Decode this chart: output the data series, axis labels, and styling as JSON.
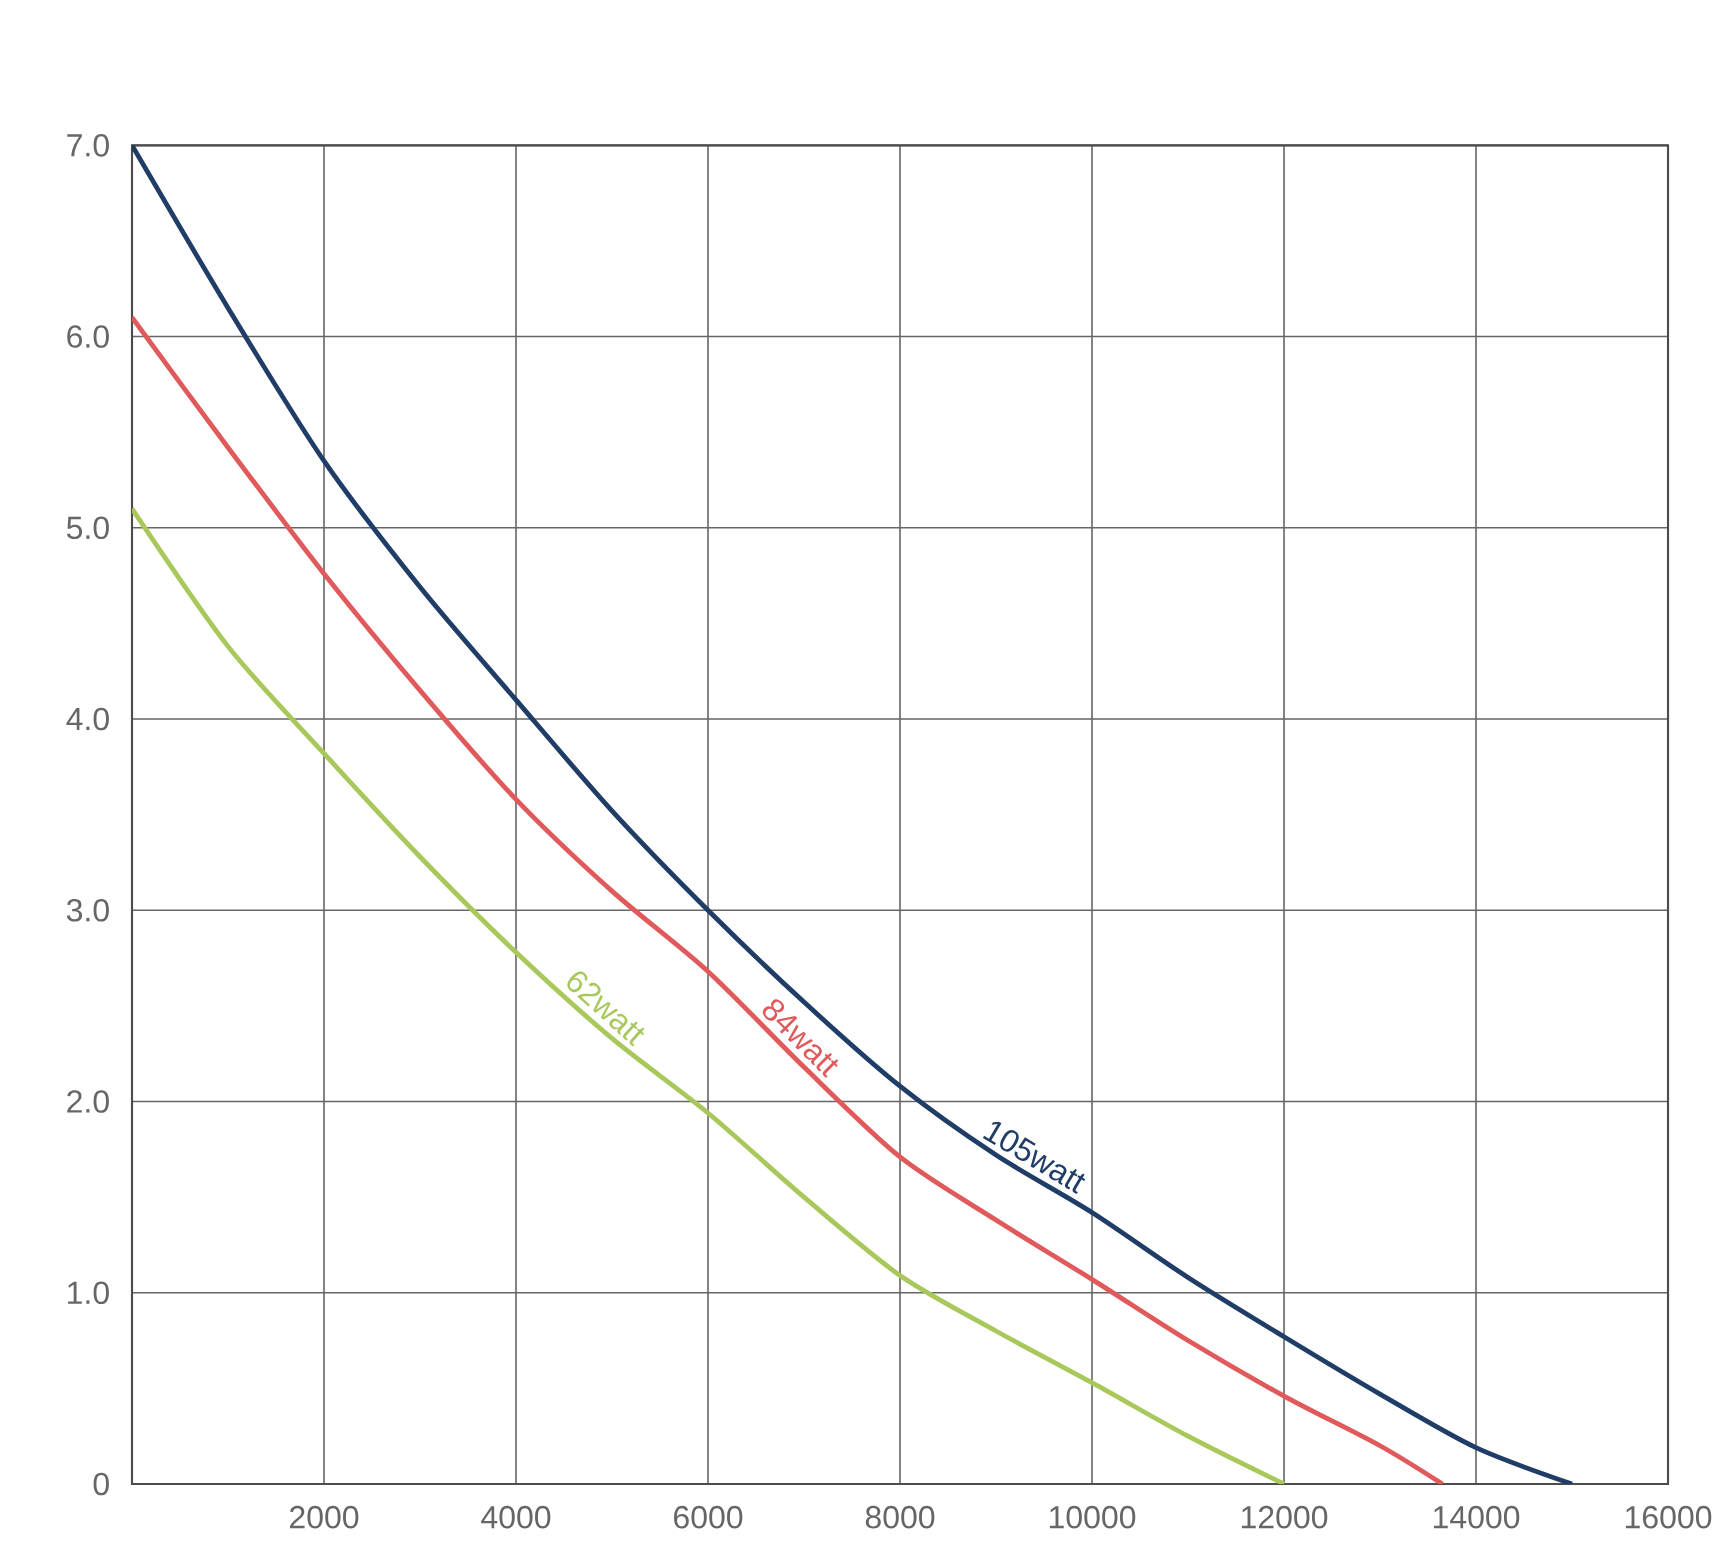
{
  "chart_data": {
    "type": "line",
    "x": [
      0,
      1000,
      2000,
      3000,
      4000,
      5000,
      6000,
      7000,
      8000,
      9000,
      10000,
      11000,
      12000,
      13000,
      14000,
      15000
    ],
    "series": [
      {
        "name": "105watt",
        "color": "#1f3d66",
        "values": [
          7.0,
          6.15,
          5.35,
          4.69,
          4.1,
          3.52,
          3.0,
          2.52,
          2.08,
          1.72,
          1.42,
          1.08,
          0.77,
          0.47,
          0.19,
          0.0
        ]
      },
      {
        "name": "84watt",
        "color": "#e05a5c",
        "x": [
          0,
          1000,
          2000,
          3000,
          4000,
          5000,
          6000,
          7000,
          8000,
          9000,
          10000,
          11000,
          12000,
          13000,
          13650
        ],
        "values": [
          6.1,
          5.42,
          4.76,
          4.15,
          3.58,
          3.1,
          2.68,
          2.18,
          1.71,
          1.38,
          1.07,
          0.75,
          0.46,
          0.2,
          0.0
        ]
      },
      {
        "name": "62watt",
        "color": "#a9c85c",
        "x": [
          0,
          1000,
          2000,
          3000,
          4000,
          5000,
          6000,
          7000,
          8000,
          9000,
          10000,
          11000,
          12000
        ],
        "values": [
          5.1,
          4.38,
          3.82,
          3.28,
          2.78,
          2.33,
          1.94,
          1.5,
          1.09,
          0.8,
          0.53,
          0.25,
          0.0
        ]
      }
    ],
    "xlim": [
      0,
      16000
    ],
    "ylim": [
      0,
      7
    ],
    "xticks": [
      2000,
      4000,
      6000,
      8000,
      10000,
      12000,
      14000,
      16000
    ],
    "yticks": [
      {
        "value": 0,
        "label": "0"
      },
      {
        "value": 1,
        "label": "1.0"
      },
      {
        "value": 2,
        "label": "2.0"
      },
      {
        "value": 3,
        "label": "3.0"
      },
      {
        "value": 4,
        "label": "4.0"
      },
      {
        "value": 5,
        "label": "5.0"
      },
      {
        "value": 6,
        "label": "6.0"
      },
      {
        "value": 7,
        "label": "7.0"
      }
    ],
    "grid": true,
    "legend": false,
    "marker": "none",
    "line_style": "solid"
  }
}
